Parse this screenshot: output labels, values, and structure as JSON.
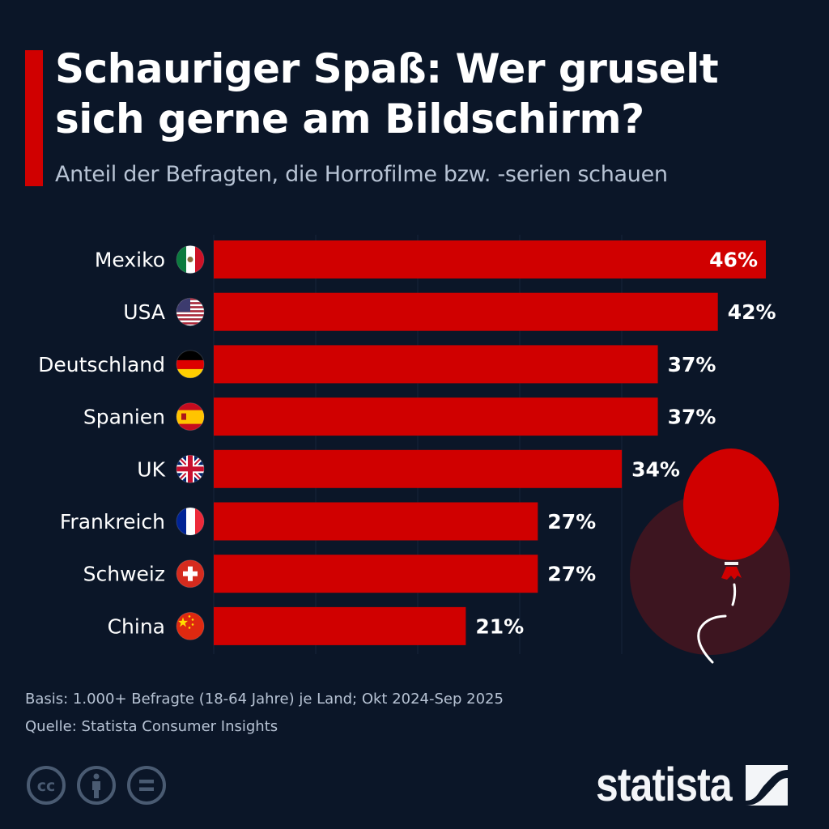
{
  "header": {
    "title": "Schauriger Spaß: Wer gruselt sich gerne am Bildschirm?",
    "subtitle": "Anteil der Befragten, die Horrofilme bzw. -serien schauen"
  },
  "colors": {
    "background": "#0b1628",
    "bar": "#d00000",
    "accent": "#d00000",
    "balloon_backdrop": "#3d1520",
    "muted_text": "#b7c3d4",
    "icon_gray": "#4a5b72"
  },
  "chart_data": {
    "type": "bar",
    "orientation": "horizontal",
    "title": "Schauriger Spaß: Wer gruselt sich gerne am Bildschirm?",
    "subtitle": "Anteil der Befragten, die Horrofilme bzw. -serien schauen",
    "xlabel": "",
    "ylabel": "",
    "unit": "%",
    "categories": [
      "Mexiko",
      "USA",
      "Deutschland",
      "Spanien",
      "UK",
      "Frankreich",
      "Schweiz",
      "China"
    ],
    "flags": [
      "mexico-flag",
      "usa-flag",
      "germany-flag",
      "spain-flag",
      "uk-flag",
      "france-flag",
      "switzerland-flag",
      "china-flag"
    ],
    "values": [
      46,
      42,
      37,
      37,
      34,
      27,
      27,
      21
    ],
    "labels": [
      "46%",
      "42%",
      "37%",
      "37%",
      "34%",
      "27%",
      "27%",
      "21%"
    ],
    "xlim": [
      0,
      46
    ],
    "grid": true,
    "legend": "none"
  },
  "footer": {
    "basis": "Basis: 1.000+ Befragte (18-64 Jahre) je Land; Okt 2024-Sep 2025",
    "source": "Quelle: Statista Consumer Insights",
    "license_icons": [
      "cc-icon",
      "attribution-icon",
      "no-derivatives-icon"
    ],
    "logo": "statista"
  }
}
